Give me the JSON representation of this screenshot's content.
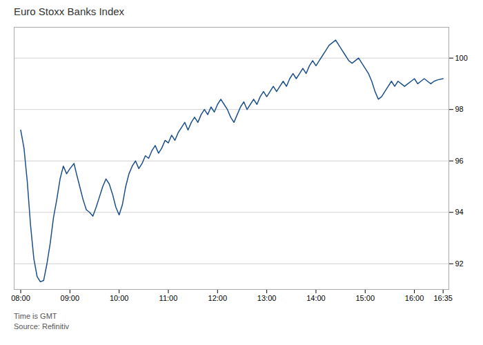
{
  "chart_data": {
    "type": "line",
    "title": "Euro Stoxx Banks Index",
    "annotations": [
      "Time is GMT",
      "Source: Refinitiv"
    ],
    "color": "#1a4f8a",
    "grid": true,
    "xlim": [
      -8,
      522
    ],
    "xticks": [
      {
        "value": 0,
        "label": "08:00"
      },
      {
        "value": 60,
        "label": "09:00"
      },
      {
        "value": 120,
        "label": "10:00"
      },
      {
        "value": 180,
        "label": "11:00"
      },
      {
        "value": 240,
        "label": "12:00"
      },
      {
        "value": 300,
        "label": "13:00"
      },
      {
        "value": 360,
        "label": "14:00"
      },
      {
        "value": 420,
        "label": "15:00"
      },
      {
        "value": 480,
        "label": "16:00"
      },
      {
        "value": 515,
        "label": "16:35"
      }
    ],
    "ylim": [
      91.0,
      101.2
    ],
    "yticks": [
      92,
      94,
      96,
      98,
      100
    ],
    "x": [
      0,
      4,
      8,
      12,
      16,
      20,
      24,
      28,
      32,
      36,
      40,
      44,
      48,
      52,
      56,
      60,
      65,
      68,
      72,
      76,
      80,
      84,
      88,
      92,
      96,
      100,
      104,
      108,
      112,
      116,
      120,
      124,
      128,
      132,
      136,
      140,
      144,
      148,
      152,
      156,
      160,
      164,
      168,
      172,
      176,
      180,
      184,
      188,
      192,
      196,
      200,
      204,
      208,
      212,
      216,
      220,
      224,
      228,
      232,
      236,
      240,
      244,
      248,
      252,
      256,
      260,
      264,
      268,
      272,
      276,
      280,
      284,
      288,
      292,
      296,
      300,
      304,
      308,
      312,
      316,
      320,
      324,
      328,
      332,
      336,
      340,
      344,
      348,
      352,
      356,
      360,
      364,
      368,
      372,
      376,
      380,
      384,
      388,
      392,
      396,
      400,
      404,
      408,
      412,
      416,
      420,
      424,
      428,
      432,
      436,
      440,
      444,
      448,
      452,
      456,
      460,
      464,
      468,
      472,
      476,
      480,
      484,
      488,
      492,
      496,
      500,
      504,
      508,
      515
    ],
    "values": [
      97.2,
      96.5,
      95.2,
      93.5,
      92.2,
      91.5,
      91.3,
      91.35,
      92.0,
      92.8,
      93.8,
      94.5,
      95.3,
      95.8,
      95.5,
      95.7,
      95.9,
      95.5,
      95.0,
      94.5,
      94.1,
      94.0,
      93.85,
      94.2,
      94.6,
      95.0,
      95.3,
      95.1,
      94.7,
      94.2,
      93.9,
      94.3,
      95.0,
      95.5,
      95.8,
      96.0,
      95.7,
      95.9,
      96.2,
      96.1,
      96.4,
      96.6,
      96.3,
      96.5,
      96.8,
      96.7,
      97.0,
      96.8,
      97.1,
      97.3,
      97.5,
      97.2,
      97.5,
      97.7,
      97.5,
      97.8,
      98.0,
      97.8,
      98.1,
      97.9,
      98.2,
      98.4,
      98.2,
      98.0,
      97.7,
      97.5,
      97.8,
      98.1,
      98.3,
      98.0,
      98.2,
      98.4,
      98.2,
      98.5,
      98.7,
      98.5,
      98.7,
      98.9,
      98.7,
      98.9,
      99.1,
      98.9,
      99.2,
      99.4,
      99.2,
      99.4,
      99.6,
      99.4,
      99.7,
      99.9,
      99.7,
      99.9,
      100.1,
      100.3,
      100.5,
      100.6,
      100.7,
      100.5,
      100.3,
      100.1,
      99.9,
      99.8,
      99.9,
      100.0,
      99.8,
      99.6,
      99.4,
      99.1,
      98.7,
      98.4,
      98.5,
      98.7,
      98.9,
      99.1,
      98.9,
      99.1,
      99.0,
      98.9,
      99.0,
      99.1,
      99.2,
      99.0,
      99.1,
      99.2,
      99.1,
      99.0,
      99.1,
      99.15,
      99.2
    ]
  }
}
